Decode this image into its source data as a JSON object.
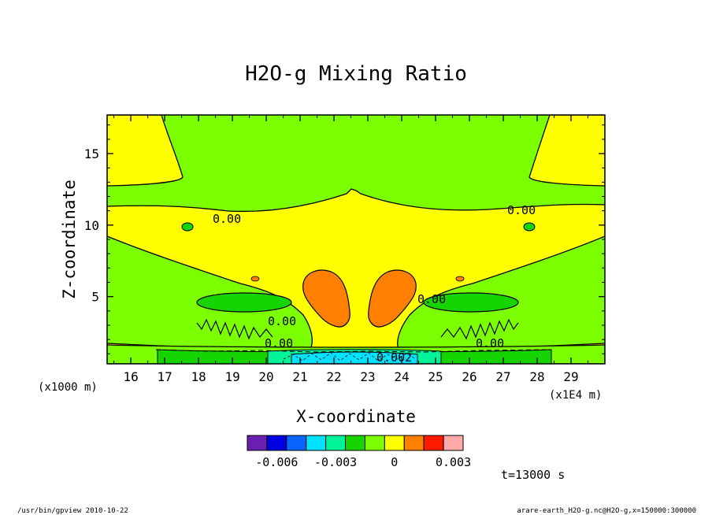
{
  "chart_data": {
    "type": "heatmap",
    "subtype": "filled-contour",
    "title": "H2O-g Mixing Ratio",
    "xlabel": "X-coordinate",
    "ylabel": "Z-coordinate",
    "x_units": "(x1E4 m)",
    "y_units": "(x1000 m)",
    "xlim": [
      15.3,
      30.0
    ],
    "ylim": [
      0.3,
      17.7
    ],
    "x_ticks": [
      "16",
      "17",
      "18",
      "19",
      "20",
      "21",
      "22",
      "23",
      "24",
      "25",
      "26",
      "27",
      "28",
      "29"
    ],
    "y_ticks": [
      "5",
      "10",
      "15"
    ],
    "x_tick_values": [
      16,
      17,
      18,
      19,
      20,
      21,
      22,
      23,
      24,
      25,
      26,
      27,
      28,
      29
    ],
    "y_tick_values": [
      5,
      10,
      15
    ],
    "contour_labels": [
      {
        "text": "0.00",
        "x": 19.1,
        "z": 10.4
      },
      {
        "text": "0.00",
        "x": 26.6,
        "z": 11.1
      },
      {
        "text": "0.00",
        "x": 25.1,
        "z": 5.7
      },
      {
        "text": "0.00",
        "x": 20.2,
        "z": 3.6
      },
      {
        "text": "0.00",
        "x": 20.2,
        "z": 1.7
      },
      {
        "text": "0.00",
        "x": 26.5,
        "z": 1.7
      },
      {
        "text": "0.002",
        "x": 23.6,
        "z": 0.7
      }
    ],
    "colorbar": {
      "colors": [
        "#6a1fb0",
        "#0000e0",
        "#0a64ff",
        "#00e2ff",
        "#00f59a",
        "#16d400",
        "#7cff00",
        "#ffff00",
        "#ff7f00",
        "#ff1a00",
        "#ffaaaa"
      ],
      "tick_labels": [
        "-0.006",
        "-0.003",
        "0",
        "0.003"
      ],
      "tick_values": [
        -0.006,
        -0.003,
        0,
        0.003
      ],
      "range": [
        -0.0075,
        0.0035
      ]
    },
    "time_label": "t=13000 s"
  },
  "footer": {
    "left": "/usr/bin/gpview   2010-10-22",
    "right": "arare-earth_H2O-g.nc@H2O-g,x=150000:300000"
  }
}
